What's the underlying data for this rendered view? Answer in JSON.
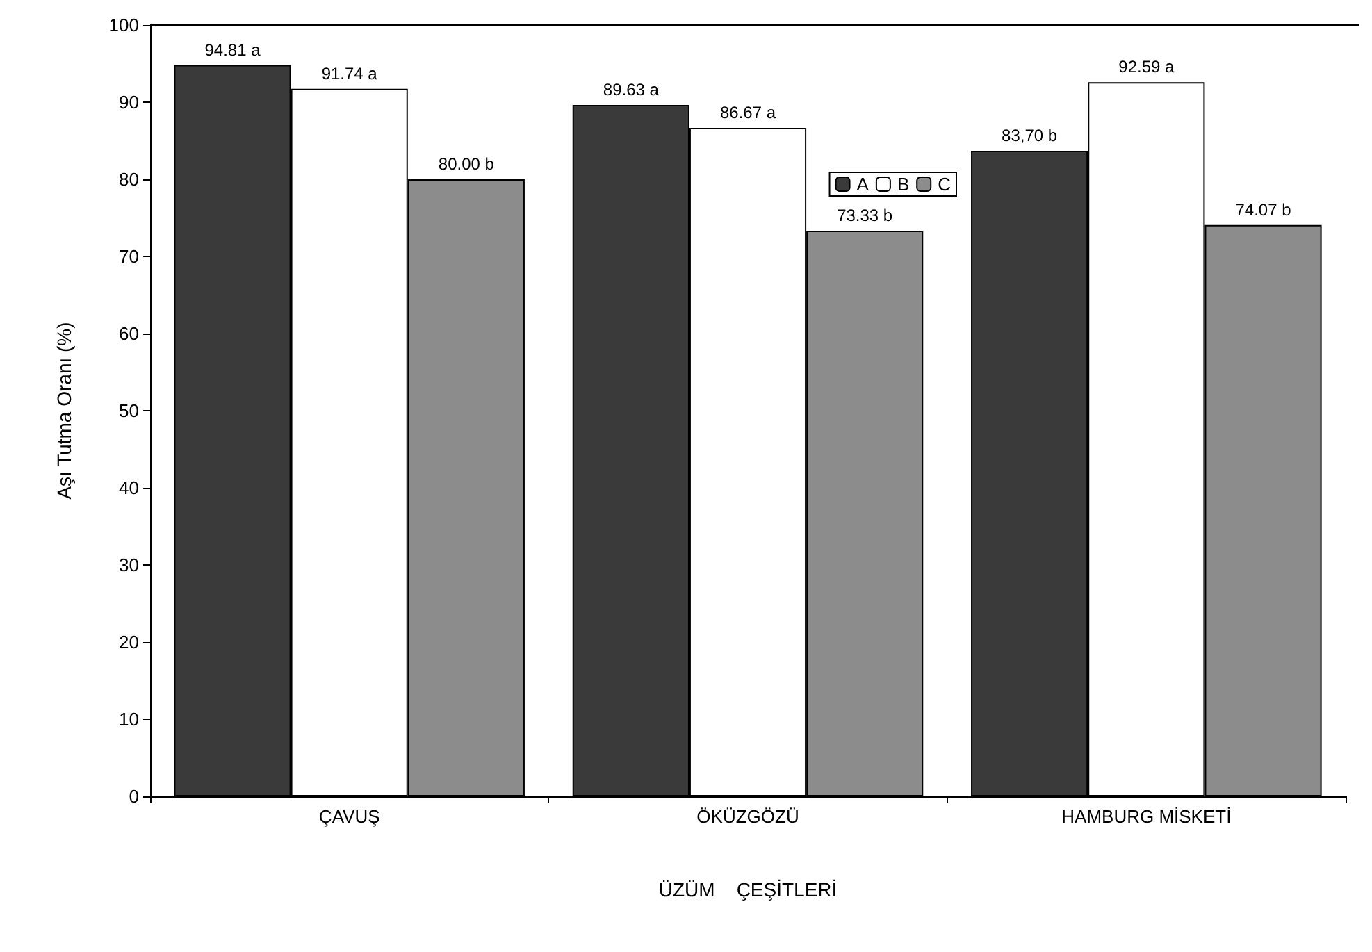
{
  "chart_data": {
    "type": "bar",
    "xlabel": "ÜZÜM    ÇEŞİTLERİ",
    "ylabel": "Aşı Tutma Oranı (%)",
    "categories": [
      "ÇAVUŞ",
      "ÖKÜZGÖZÜ",
      "HAMBURG MİSKETİ"
    ],
    "series": [
      {
        "name": "A",
        "color": "#3a3a3a",
        "values": [
          94.81,
          89.63,
          83.7
        ],
        "value_labels": [
          "94.81 a",
          "89.63 a",
          "83,70 b"
        ]
      },
      {
        "name": "B",
        "color": "#ffffff",
        "values": [
          91.74,
          86.67,
          92.59
        ],
        "value_labels": [
          "91.74 a",
          "86.67 a",
          "92.59 a"
        ]
      },
      {
        "name": "C",
        "color": "#8c8c8c",
        "values": [
          80.0,
          73.33,
          74.07
        ],
        "value_labels": [
          "80.00 b",
          "73.33 b",
          "74.07 b"
        ]
      }
    ],
    "ylim": [
      0,
      100
    ],
    "yticks": [
      0,
      10,
      20,
      30,
      40,
      50,
      60,
      70,
      80,
      90,
      100
    ],
    "grid": false,
    "legend": "top right"
  }
}
